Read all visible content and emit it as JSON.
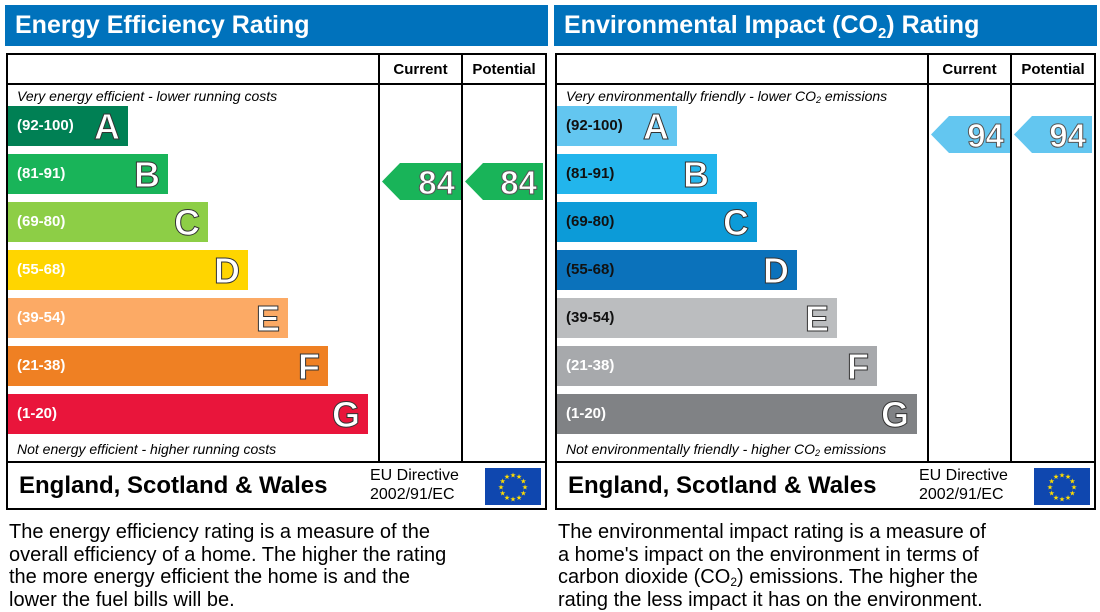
{
  "panels": [
    {
      "id": "energy",
      "title": "Energy Efficiency Rating",
      "title_sub": "",
      "title_after": "",
      "col_current": "Current",
      "col_potential": "Potential",
      "top_note": [
        "Very energy efficient - lower running costs"
      ],
      "bottom_note": [
        "Not energy efficient - higher running costs"
      ],
      "bands": [
        {
          "range": "(92-100)",
          "letter": "A",
          "color": "#008054",
          "text": "#fff"
        },
        {
          "range": "(81-91)",
          "letter": "B",
          "color": "#19b459",
          "text": "#fff"
        },
        {
          "range": "(69-80)",
          "letter": "C",
          "color": "#8dce46",
          "text": "#fff"
        },
        {
          "range": "(55-68)",
          "letter": "D",
          "color": "#ffd500",
          "text": "#fff"
        },
        {
          "range": "(39-54)",
          "letter": "E",
          "color": "#fcaa65",
          "text": "#fff"
        },
        {
          "range": "(21-38)",
          "letter": "F",
          "color": "#ef8023",
          "text": "#fff"
        },
        {
          "range": "(1-20)",
          "letter": "G",
          "color": "#e9153b",
          "text": "#fff"
        }
      ],
      "current": {
        "value": "84",
        "band": "B",
        "color": "#19b459"
      },
      "potential": {
        "value": "84",
        "band": "B",
        "color": "#19b459"
      },
      "country": "England, Scotland & Wales",
      "directive": [
        "EU Directive",
        "2002/91/EC"
      ],
      "description": [
        [
          "The energy efficiency rating is a measure of the"
        ],
        [
          "overall efficiency of a home. The higher the rating"
        ],
        [
          "the more energy efficient the home is and the"
        ],
        [
          "lower the fuel bills will be."
        ]
      ]
    },
    {
      "id": "environment",
      "title": "Environmental Impact (CO",
      "title_sub": "2",
      "title_after": ") Rating",
      "col_current": "Current",
      "col_potential": "Potential",
      "top_note": [
        "Very environmentally friendly - lower CO",
        "2",
        " emissions"
      ],
      "bottom_note": [
        "Not environmentally friendly - higher CO",
        "2",
        " emissions"
      ],
      "bands": [
        {
          "range": "(92-100)",
          "letter": "A",
          "color": "#63c6f0",
          "text": "#111"
        },
        {
          "range": "(81-91)",
          "letter": "B",
          "color": "#22b5ec",
          "text": "#111"
        },
        {
          "range": "(69-80)",
          "letter": "C",
          "color": "#0c9bd8",
          "text": "#111"
        },
        {
          "range": "(55-68)",
          "letter": "D",
          "color": "#0b72bb",
          "text": "#111"
        },
        {
          "range": "(39-54)",
          "letter": "E",
          "color": "#bbbdbf",
          "text": "#111"
        },
        {
          "range": "(21-38)",
          "letter": "F",
          "color": "#a7a9ac",
          "text": "#fff"
        },
        {
          "range": "(1-20)",
          "letter": "G",
          "color": "#808285",
          "text": "#fff"
        }
      ],
      "current": {
        "value": "94",
        "band": "A",
        "color": "#63c6f0"
      },
      "potential": {
        "value": "94",
        "band": "A",
        "color": "#63c6f0"
      },
      "country": "England, Scotland & Wales",
      "directive": [
        "EU Directive",
        "2002/91/EC"
      ],
      "description": [
        [
          "The environmental impact rating is a measure of"
        ],
        [
          "a home's impact on the environment in terms of"
        ],
        [
          "carbon dioxide (CO",
          "2",
          ") emissions. The higher the"
        ],
        [
          "rating the less impact it has on the environment."
        ]
      ]
    }
  ]
}
